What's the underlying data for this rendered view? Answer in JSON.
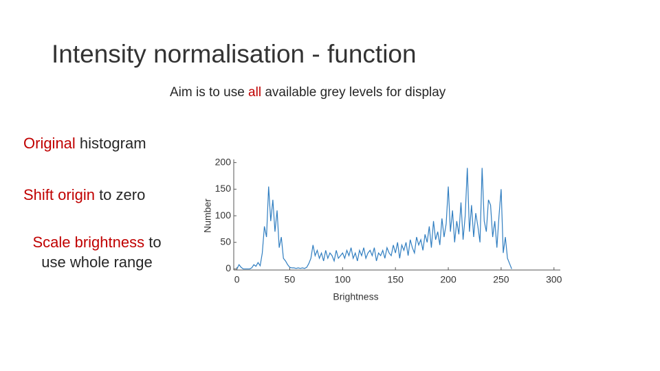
{
  "title": "Intensity normalisation - function",
  "subtitle": [
    "Aim is to use ",
    "all",
    " available grey levels for display"
  ],
  "bullets": [
    [
      "Original",
      " histogram"
    ],
    [
      "Shift origin",
      " to zero"
    ],
    [
      "Scale brightness",
      " to use whole range"
    ]
  ],
  "chart_data": {
    "type": "line",
    "xlabel": "Brightness",
    "ylabel": "Number",
    "x": [
      0,
      2,
      4,
      6,
      8,
      10,
      12,
      14,
      16,
      18,
      20,
      22,
      24,
      26,
      28,
      30,
      32,
      34,
      36,
      38,
      40,
      42,
      44,
      46,
      48,
      50,
      52,
      54,
      56,
      58,
      60,
      62,
      64,
      66,
      68,
      70,
      72,
      74,
      76,
      78,
      80,
      82,
      84,
      86,
      88,
      90,
      92,
      94,
      96,
      98,
      100,
      102,
      104,
      106,
      108,
      110,
      112,
      114,
      116,
      118,
      120,
      122,
      124,
      126,
      128,
      130,
      132,
      134,
      136,
      138,
      140,
      142,
      144,
      146,
      148,
      150,
      152,
      154,
      156,
      158,
      160,
      162,
      164,
      166,
      168,
      170,
      172,
      174,
      176,
      178,
      180,
      182,
      184,
      186,
      188,
      190,
      192,
      194,
      196,
      198,
      200,
      202,
      204,
      206,
      208,
      210,
      212,
      214,
      216,
      218,
      220,
      222,
      224,
      226,
      228,
      230,
      232,
      234,
      236,
      238,
      240,
      242,
      244,
      246,
      248,
      250,
      252,
      254,
      256,
      258,
      260
    ],
    "series": [
      {
        "name": "Number",
        "color": "#2f7dc0",
        "values": [
          0,
          8,
          3,
          0,
          0,
          0,
          0,
          2,
          8,
          5,
          12,
          6,
          30,
          80,
          60,
          155,
          90,
          130,
          70,
          110,
          40,
          60,
          20,
          15,
          8,
          3,
          2,
          2,
          1,
          2,
          1,
          2,
          1,
          3,
          10,
          20,
          45,
          25,
          35,
          20,
          30,
          15,
          35,
          20,
          30,
          25,
          15,
          35,
          20,
          25,
          30,
          20,
          35,
          25,
          40,
          20,
          30,
          15,
          35,
          25,
          40,
          20,
          30,
          35,
          25,
          40,
          15,
          30,
          25,
          35,
          20,
          40,
          30,
          25,
          45,
          30,
          50,
          20,
          45,
          35,
          50,
          25,
          55,
          40,
          30,
          60,
          45,
          55,
          35,
          65,
          50,
          80,
          40,
          90,
          55,
          70,
          45,
          95,
          60,
          85,
          155,
          70,
          110,
          50,
          90,
          65,
          125,
          55,
          100,
          190,
          70,
          120,
          60,
          105,
          80,
          50,
          190,
          90,
          70,
          130,
          120,
          60,
          90,
          40,
          100,
          150,
          30,
          60,
          20,
          10,
          0
        ]
      }
    ],
    "xlim": [
      -3,
      306
    ],
    "ylim": [
      -2,
      206
    ],
    "xticks": [
      0,
      50,
      100,
      150,
      200,
      250,
      300
    ],
    "yticks": [
      0,
      50,
      100,
      150,
      200
    ]
  }
}
